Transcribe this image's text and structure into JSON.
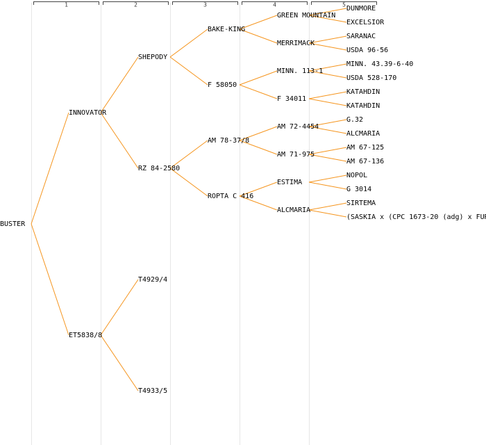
{
  "columns": [
    "1",
    "2",
    "3",
    "4",
    "5"
  ],
  "tree": {
    "label": "BUSTER",
    "children": [
      {
        "label": "INNOVATOR",
        "children": [
          {
            "label": "SHEPODY",
            "children": [
              {
                "label": "BAKE-KING",
                "children": [
                  {
                    "label": "GREEN MOUNTAIN",
                    "children": [
                      {
                        "label": "DUNMORE"
                      },
                      {
                        "label": "EXCELSIOR"
                      }
                    ]
                  },
                  {
                    "label": "MERRIMACK",
                    "children": [
                      {
                        "label": "SARANAC"
                      },
                      {
                        "label": "USDA 96-56"
                      }
                    ]
                  }
                ]
              },
              {
                "label": "F 58050",
                "children": [
                  {
                    "label": "MINN. 113-1",
                    "children": [
                      {
                        "label": "MINN. 43.39-6-40"
                      },
                      {
                        "label": "USDA 528-170"
                      }
                    ]
                  },
                  {
                    "label": "F 34011",
                    "children": [
                      {
                        "label": "KATAHDIN"
                      },
                      {
                        "label": "KATAHDIN"
                      }
                    ]
                  }
                ]
              }
            ]
          },
          {
            "label": "RZ 84-2580",
            "children": [
              {
                "label": "AM 78-37/8",
                "children": [
                  {
                    "label": "AM 72-4454",
                    "children": [
                      {
                        "label": "G.32"
                      },
                      {
                        "label": "ALCMARIA"
                      }
                    ]
                  },
                  {
                    "label": "AM 71-975",
                    "children": [
                      {
                        "label": "AM 67-125"
                      },
                      {
                        "label": "AM 67-136"
                      }
                    ]
                  }
                ]
              },
              {
                "label": "ROPTA C 416",
                "children": [
                  {
                    "label": "ESTIMA",
                    "children": [
                      {
                        "label": "NOPOL"
                      },
                      {
                        "label": "G 3014"
                      }
                    ]
                  },
                  {
                    "label": "ALCMARIA",
                    "children": [
                      {
                        "label": "SIRTEMA"
                      },
                      {
                        "label": "(SASKIA x (CPC 1673-20 (adg) x FUR"
                      }
                    ]
                  }
                ]
              }
            ]
          }
        ]
      },
      {
        "label": "ET5838/8",
        "children": [
          {
            "label": "T4929/4"
          },
          {
            "label": "T4933/5"
          }
        ]
      }
    ]
  }
}
